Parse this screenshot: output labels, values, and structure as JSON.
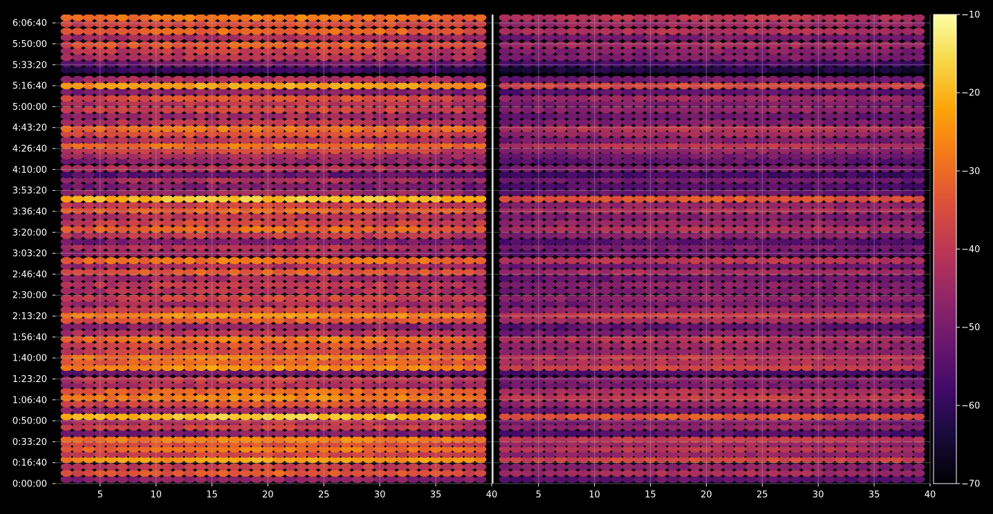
{
  "chart_data": {
    "type": "heatmap",
    "title": "",
    "xlabel": "",
    "ylabel": "",
    "panels": [
      {
        "name": "",
        "xlim": [
          1,
          40
        ],
        "x_ticks": [
          5,
          10,
          15,
          20,
          25,
          30,
          35,
          40
        ],
        "relative_level": 1.0
      },
      {
        "name": "",
        "xlim": [
          1,
          40
        ],
        "x_ticks": [
          5,
          10,
          15,
          20,
          25,
          30,
          35,
          40
        ],
        "relative_level": 0.72
      }
    ],
    "y_axis": {
      "lim": [
        0,
        22400
      ],
      "ticks": [
        {
          "value": 0,
          "label": "0:00:00"
        },
        {
          "value": 1000,
          "label": "0:16:40"
        },
        {
          "value": 2000,
          "label": "0:33:20"
        },
        {
          "value": 3000,
          "label": "0:50:00"
        },
        {
          "value": 4000,
          "label": "1:06:40"
        },
        {
          "value": 5000,
          "label": "1:23:20"
        },
        {
          "value": 6000,
          "label": "1:40:00"
        },
        {
          "value": 7000,
          "label": "1:56:40"
        },
        {
          "value": 8000,
          "label": "2:13:20"
        },
        {
          "value": 9000,
          "label": "2:30:00"
        },
        {
          "value": 10000,
          "label": "2:46:40"
        },
        {
          "value": 11000,
          "label": "3:03:20"
        },
        {
          "value": 12000,
          "label": "3:20:00"
        },
        {
          "value": 13000,
          "label": "3:36:40"
        },
        {
          "value": 14000,
          "label": "3:53:20"
        },
        {
          "value": 15000,
          "label": "4:10:00"
        },
        {
          "value": 16000,
          "label": "4:26:40"
        },
        {
          "value": 17000,
          "label": "4:43:20"
        },
        {
          "value": 18000,
          "label": "5:00:00"
        },
        {
          "value": 19000,
          "label": "5:16:40"
        },
        {
          "value": 20000,
          "label": "5:33:20"
        },
        {
          "value": 21000,
          "label": "5:50:00"
        },
        {
          "value": 22000,
          "label": "6:06:40"
        }
      ]
    },
    "colorbar": {
      "colormap": "inferno",
      "range": [
        -70,
        -10
      ],
      "ticks": [
        -70,
        -60,
        -50,
        -40,
        -30,
        -20,
        -10
      ],
      "tick_labels": [
        "−70",
        "−60",
        "−50",
        "−40",
        "−30",
        "−20",
        "−10"
      ]
    },
    "rows": [
      {
        "t": 200,
        "level": -50
      },
      {
        "t": 500,
        "level": -36
      },
      {
        "t": 800,
        "level": -42
      },
      {
        "t": 1150,
        "level": -26
      },
      {
        "t": 1400,
        "level": -40
      },
      {
        "t": 1650,
        "level": -32
      },
      {
        "t": 1900,
        "level": -38
      },
      {
        "t": 2100,
        "level": -30
      },
      {
        "t": 2400,
        "level": -52
      },
      {
        "t": 2700,
        "level": -40
      },
      {
        "t": 2950,
        "level": -44
      },
      {
        "t": 3200,
        "level": -22
      },
      {
        "t": 3500,
        "level": -48
      },
      {
        "t": 3800,
        "level": -38
      },
      {
        "t": 4100,
        "level": -30
      },
      {
        "t": 4400,
        "level": -34
      },
      {
        "t": 4700,
        "level": -46
      },
      {
        "t": 4950,
        "level": -42
      },
      {
        "t": 5300,
        "level": -54
      },
      {
        "t": 5550,
        "level": -28
      },
      {
        "t": 5800,
        "level": -34
      },
      {
        "t": 6050,
        "level": -30
      },
      {
        "t": 6300,
        "level": -40
      },
      {
        "t": 6600,
        "level": -38
      },
      {
        "t": 6900,
        "level": -32
      },
      {
        "t": 7200,
        "level": -44
      },
      {
        "t": 7500,
        "level": -50
      },
      {
        "t": 7800,
        "level": -36
      },
      {
        "t": 8050,
        "level": -28
      },
      {
        "t": 8300,
        "level": -40
      },
      {
        "t": 8600,
        "level": -46
      },
      {
        "t": 8850,
        "level": -40
      },
      {
        "t": 9200,
        "level": -44
      },
      {
        "t": 9500,
        "level": -42
      },
      {
        "t": 9800,
        "level": -48
      },
      {
        "t": 10100,
        "level": -36
      },
      {
        "t": 10400,
        "level": -46
      },
      {
        "t": 10650,
        "level": -32
      },
      {
        "t": 11000,
        "level": -48
      },
      {
        "t": 11300,
        "level": -44
      },
      {
        "t": 11550,
        "level": -52
      },
      {
        "t": 11850,
        "level": -42
      },
      {
        "t": 12150,
        "level": -34
      },
      {
        "t": 12450,
        "level": -40
      },
      {
        "t": 12750,
        "level": -44
      },
      {
        "t": 13050,
        "level": -34
      },
      {
        "t": 13300,
        "level": -40
      },
      {
        "t": 13600,
        "level": -22
      },
      {
        "t": 13900,
        "level": -48
      },
      {
        "t": 14200,
        "level": -52
      },
      {
        "t": 14500,
        "level": -46
      },
      {
        "t": 14750,
        "level": -56
      },
      {
        "t": 15050,
        "level": -44
      },
      {
        "t": 15400,
        "level": -50
      },
      {
        "t": 15650,
        "level": -46
      },
      {
        "t": 15900,
        "level": -40
      },
      {
        "t": 16150,
        "level": -32
      },
      {
        "t": 16400,
        "level": -44
      },
      {
        "t": 16700,
        "level": -38
      },
      {
        "t": 16950,
        "level": -32
      },
      {
        "t": 17250,
        "level": -44
      },
      {
        "t": 17550,
        "level": -48
      },
      {
        "t": 17850,
        "level": -40
      },
      {
        "t": 18150,
        "level": -44
      },
      {
        "t": 18400,
        "level": -38
      },
      {
        "t": 18700,
        "level": -50
      },
      {
        "t": 19000,
        "level": -26
      },
      {
        "t": 19300,
        "level": -46
      },
      {
        "t": 19750,
        "level": -62
      },
      {
        "t": 20050,
        "level": -54
      },
      {
        "t": 20350,
        "level": -44
      },
      {
        "t": 20650,
        "level": -42
      },
      {
        "t": 20950,
        "level": -36
      },
      {
        "t": 21300,
        "level": -46
      },
      {
        "t": 21600,
        "level": -34
      },
      {
        "t": 21950,
        "level": -38
      },
      {
        "t": 22250,
        "level": -32
      }
    ]
  }
}
